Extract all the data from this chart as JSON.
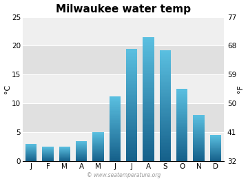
{
  "title": "Milwaukee water temp",
  "months": [
    "J",
    "F",
    "M",
    "A",
    "M",
    "J",
    "J",
    "A",
    "S",
    "O",
    "N",
    "D"
  ],
  "values_c": [
    3.0,
    2.5,
    2.5,
    3.5,
    5.0,
    11.2,
    19.5,
    21.5,
    19.2,
    12.5,
    8.0,
    4.5
  ],
  "ylim_c": [
    0,
    25
  ],
  "yticks_c": [
    0,
    5,
    10,
    15,
    20,
    25
  ],
  "yticks_f": [
    32,
    41,
    50,
    59,
    68,
    77
  ],
  "ylabel_left": "°C",
  "ylabel_right": "°F",
  "bar_color_bottom": "#15608a",
  "bar_color_top": "#5abfe0",
  "background_plot": "#e8e8e8",
  "band_color_light": "#efefef",
  "band_color_dark": "#e0e0e0",
  "watermark": "© www.seatemperature.org",
  "title_fontsize": 11,
  "label_fontsize": 8,
  "tick_fontsize": 7.5,
  "watermark_fontsize": 5.5
}
